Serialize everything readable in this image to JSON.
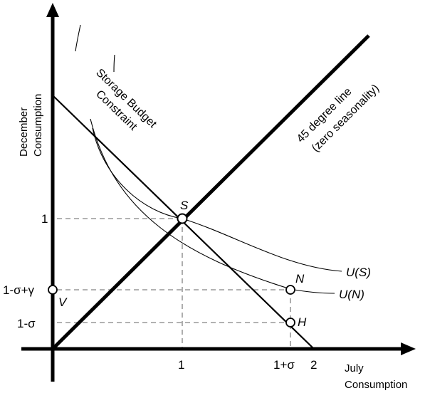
{
  "axes": {
    "x_title_line1": "July",
    "x_title_line2": "Consumption",
    "y_title_line1": "December",
    "y_title_line2": "Consumption",
    "x_ticks": [
      "1",
      "1+σ",
      "2"
    ],
    "y_ticks": [
      "1",
      "1-σ+γ",
      "1-σ"
    ]
  },
  "lines": {
    "budget_line1": "Storage Budget",
    "budget_line2": "Constraint",
    "degree_line1": "45 degree line",
    "degree_line2": "(zero seasonality)"
  },
  "points": {
    "S": "S",
    "N": "N",
    "H": "H",
    "V": "V"
  },
  "curves": {
    "US": "U(S)",
    "UN": "U(N)"
  }
}
